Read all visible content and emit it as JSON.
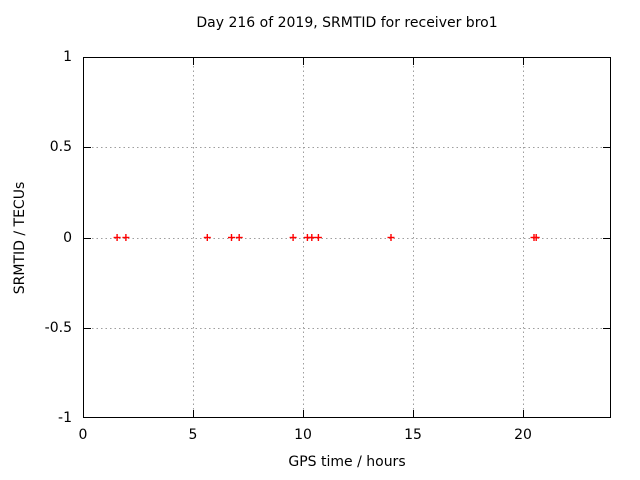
{
  "title": "Day 216 of 2019, SRMTID for receiver bro1",
  "chart_data": {
    "type": "scatter",
    "title": "Day 216 of 2019, SRMTID for receiver bro1",
    "xlabel": "GPS time / hours",
    "ylabel": "SRMTID / TECUs",
    "xlim": [
      0,
      24
    ],
    "ylim": [
      -1,
      1
    ],
    "xticks": [
      0,
      5,
      10,
      15,
      20
    ],
    "yticks": [
      1,
      0.5,
      0,
      -0.5,
      -1
    ],
    "xtick_labels": [
      "0",
      "5",
      "10",
      "15",
      "20"
    ],
    "ytick_labels": [
      "1",
      "0.5",
      "0",
      "-0.5",
      "-1"
    ],
    "grid": true,
    "legend": "none",
    "marker": "plus",
    "marker_color": "#ff0000",
    "grid_color": "#9e9e9e",
    "border_color": "#000000",
    "series": [
      {
        "name": "SRMTID",
        "x": [
          1.55,
          1.95,
          5.65,
          6.75,
          7.1,
          9.55,
          10.2,
          10.4,
          10.7,
          14.0,
          20.5,
          20.6
        ],
        "y": [
          0,
          0,
          0,
          0,
          0,
          0,
          0,
          0,
          0,
          0,
          0,
          0
        ]
      }
    ]
  }
}
